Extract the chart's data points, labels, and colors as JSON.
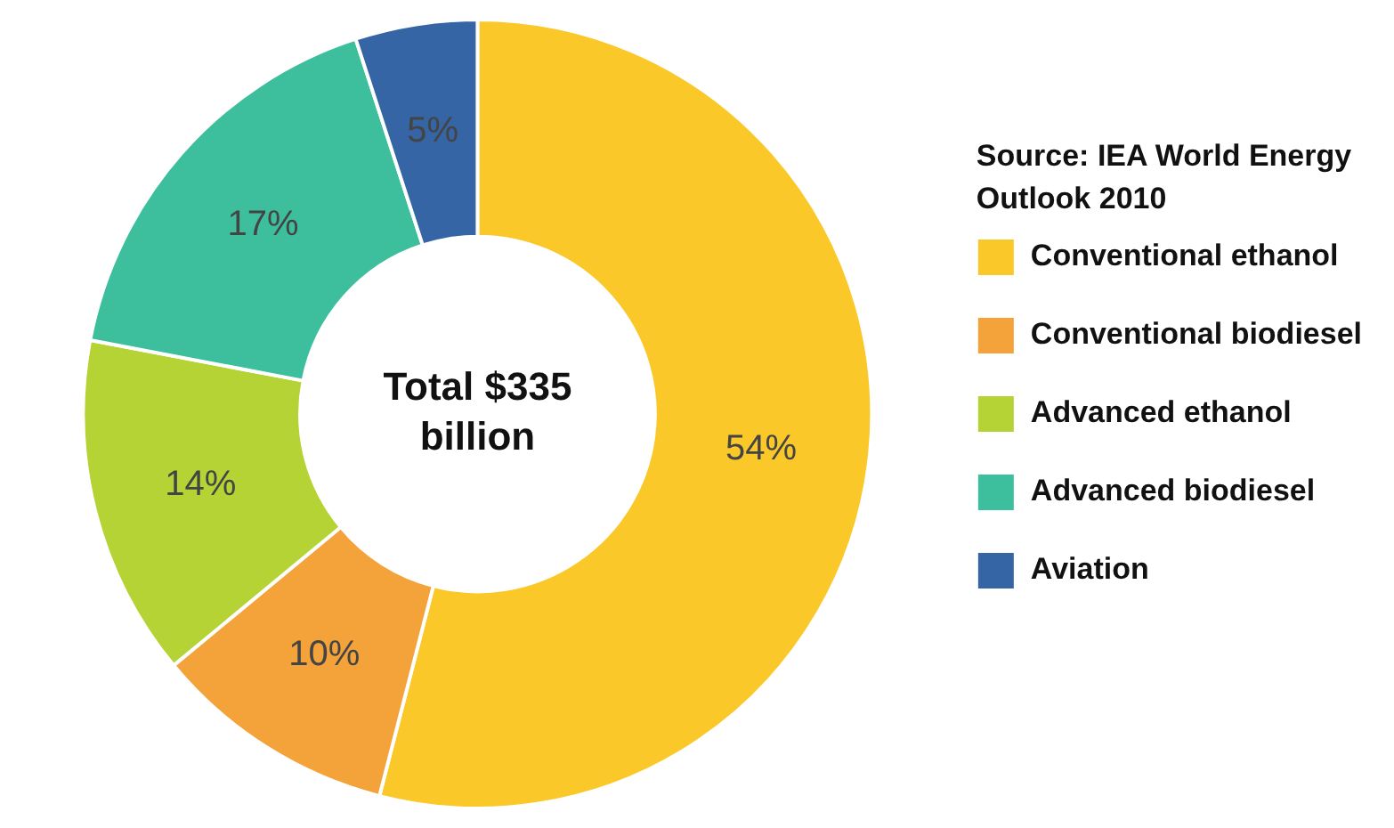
{
  "chart_data": {
    "type": "donut",
    "categories": [
      "Conventional ethanol",
      "Conventional biodiesel",
      "Advanced ethanol",
      "Advanced biodiesel",
      "Aviation"
    ],
    "values": [
      54,
      10,
      14,
      17,
      5
    ],
    "value_labels": [
      "54%",
      "10%",
      "14%",
      "17%",
      "5%"
    ],
    "colors": [
      "#fbc82a",
      "#f4a23a",
      "#b5d334",
      "#3dbf9d",
      "#3565a5"
    ],
    "legend": "right",
    "annotations": [
      "Source: IEA World Energy Outlook 2010",
      "Total $335 billion"
    ]
  }
}
